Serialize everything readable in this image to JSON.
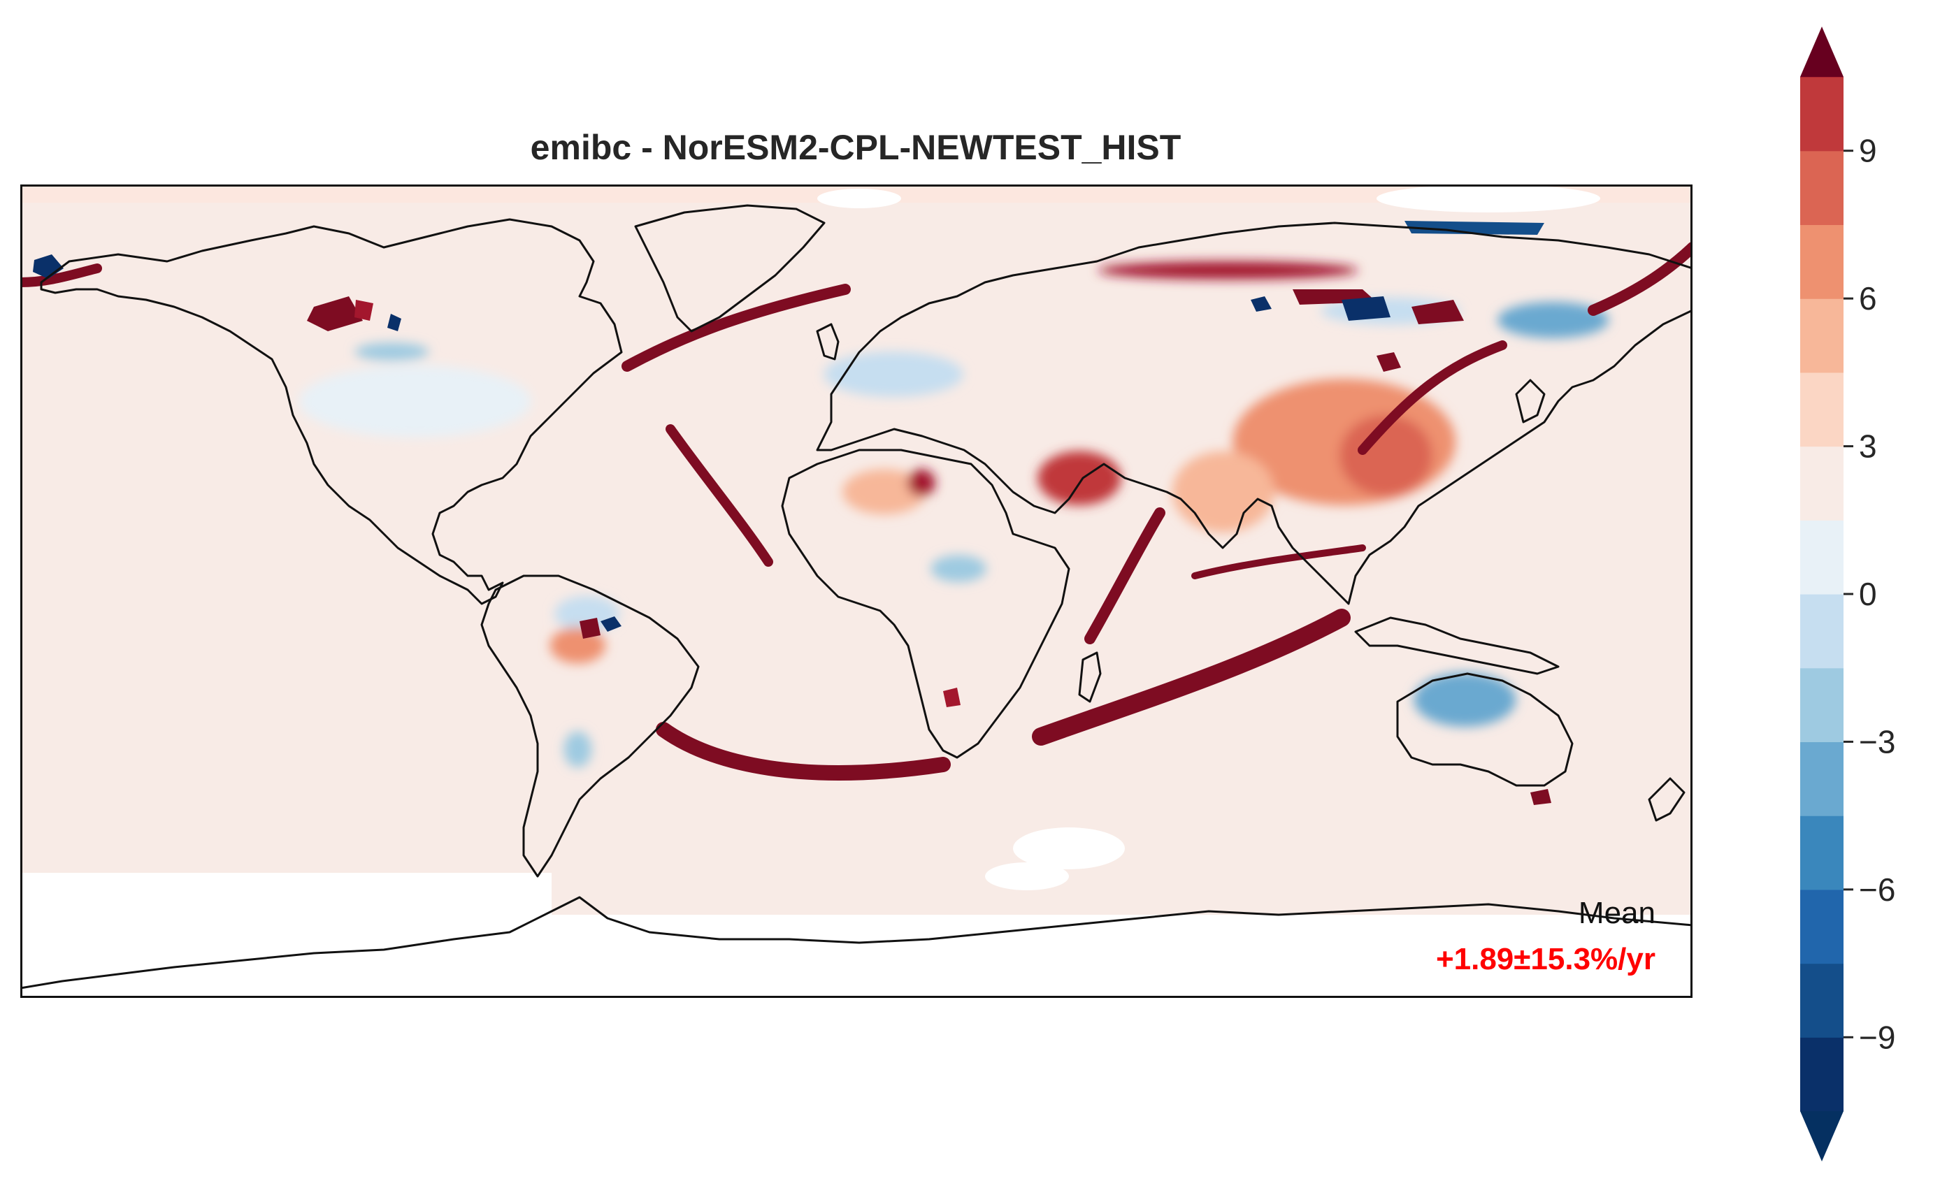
{
  "title": "emibc - NorESM2-CPL-NEWTEST_HIST",
  "annotation": {
    "label": "Mean",
    "value": "+1.89±15.3%/yr",
    "value_color": "#ff0000"
  },
  "map": {
    "projection": "plate-carree",
    "extent_lon": [
      -180,
      180
    ],
    "extent_lat": [
      -90,
      90
    ],
    "field": "emibc",
    "coastlines": true,
    "background_level_color": "#f8ebe6"
  },
  "colorbar": {
    "orientation": "vertical",
    "extend": "both",
    "levels": [
      -10.5,
      -9,
      -7.5,
      -6,
      -4.5,
      -3,
      -1.5,
      0,
      1.5,
      3,
      4.5,
      6,
      7.5,
      9,
      10.5
    ],
    "colors": [
      "#0a3069",
      "#144e8a",
      "#2166ac",
      "#3a87bc",
      "#6aa9d0",
      "#9ecae1",
      "#c6def0",
      "#e8f1f7",
      "#f8ebe6",
      "#fbd6c4",
      "#f7b799",
      "#ee9170",
      "#db6553",
      "#c0393b",
      "#a3172d",
      "#7e0c22"
    ],
    "under_color": "#053061",
    "over_color": "#67001f",
    "ticks": [
      {
        "value": 9,
        "label": "9"
      },
      {
        "value": 6,
        "label": "6"
      },
      {
        "value": 3,
        "label": "3"
      },
      {
        "value": 0,
        "label": "0"
      },
      {
        "value": -3,
        "label": "−3"
      },
      {
        "value": -6,
        "label": "−6"
      },
      {
        "value": -9,
        "label": "−9"
      }
    ]
  },
  "regions": [
    {
      "name": "china",
      "lon": 105,
      "lat": 33,
      "rx": 24,
      "ry": 14,
      "value": 4.8
    },
    {
      "name": "east-china",
      "lon": 114,
      "lat": 30,
      "rx": 10,
      "ry": 9,
      "value": 6.3
    },
    {
      "name": "india",
      "lon": 79,
      "lat": 22,
      "rx": 11,
      "ry": 9,
      "value": 3.4
    },
    {
      "name": "arabia",
      "lon": 48,
      "lat": 25,
      "rx": 9,
      "ry": 6,
      "value": 8.0
    },
    {
      "name": "sahara-west",
      "lon": 6,
      "lat": 22,
      "rx": 9,
      "ry": 5,
      "value": 3.2
    },
    {
      "name": "sahara-hot",
      "lon": 14,
      "lat": 24,
      "rx": 3,
      "ry": 3,
      "value": 9.5
    },
    {
      "name": "sahel-blue",
      "lon": 22,
      "lat": 5,
      "rx": 6,
      "ry": 3,
      "value": -3.5
    },
    {
      "name": "australia-blue",
      "lon": 131,
      "lat": -24,
      "rx": 11,
      "ry": 6,
      "value": -4.8
    },
    {
      "name": "amazon-blue",
      "lon": -58,
      "lat": -5,
      "rx": 7,
      "ry": 4,
      "value": -2.5
    },
    {
      "name": "amazon-red",
      "lon": -60,
      "lat": -12,
      "rx": 6,
      "ry": 4,
      "value": 4.5
    },
    {
      "name": "pampas-blue",
      "lon": -60,
      "lat": -35,
      "rx": 3,
      "ry": 4,
      "value": -4.5
    },
    {
      "name": "north-america-blue",
      "lon": -95,
      "lat": 42,
      "rx": 25,
      "ry": 8,
      "value": -1.5
    },
    {
      "name": "canada-blue",
      "lon": -100,
      "lat": 53,
      "rx": 8,
      "ry": 2,
      "value": -4.0
    },
    {
      "name": "europe-blue",
      "lon": 8,
      "lat": 48,
      "rx": 15,
      "ry": 5,
      "value": -1.8
    },
    {
      "name": "siberia-blue",
      "lon": 115,
      "lat": 62,
      "rx": 15,
      "ry": 3,
      "value": -3.0
    },
    {
      "name": "east-siberia-blue",
      "lon": 150,
      "lat": 60,
      "rx": 12,
      "ry": 4,
      "value": -5.0
    },
    {
      "name": "arctic-russia-red",
      "lon": 80,
      "lat": 71,
      "rx": 28,
      "ry": 2,
      "value": 10
    }
  ]
}
